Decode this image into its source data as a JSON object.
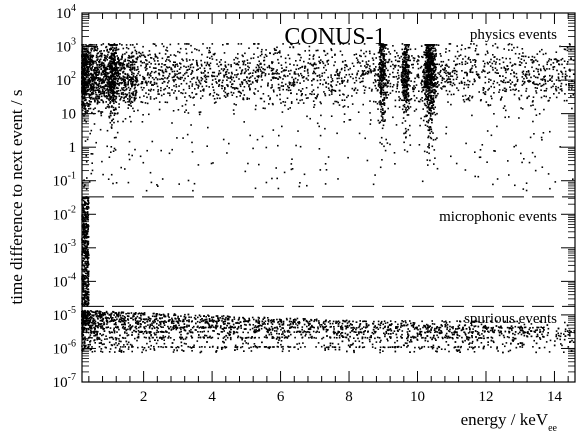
{
  "chart_data": {
    "type": "scatter",
    "title": "CONUS-1",
    "xlabel": "energy / keV",
    "xlabel_subscript": "ee",
    "ylabel": "time difference to next event / s",
    "xlim": [
      0.2,
      14.6
    ],
    "ylim_log10": [
      -7,
      4
    ],
    "y_scale": "log",
    "grid": false,
    "x_ticks": [
      2,
      4,
      6,
      8,
      10,
      12,
      14
    ],
    "x_tick_labels": [
      "2",
      "4",
      "6",
      "8",
      "10",
      "12",
      "14"
    ],
    "y_ticks": [
      {
        "base": "10",
        "exp": "-7"
      },
      {
        "base": "10",
        "exp": "-6"
      },
      {
        "base": "10",
        "exp": "-5"
      },
      {
        "base": "10",
        "exp": "-4"
      },
      {
        "base": "10",
        "exp": "-3"
      },
      {
        "base": "10",
        "exp": "-2"
      },
      {
        "base": "10",
        "exp": "-1"
      },
      {
        "base": "1",
        "exp": ""
      },
      {
        "base": "10",
        "exp": ""
      },
      {
        "base": "10",
        "exp": "2"
      },
      {
        "base": "10",
        "exp": "3"
      },
      {
        "base": "10",
        "exp": "4"
      }
    ],
    "cut_lines": [
      {
        "y": 0.033,
        "style": "dashed"
      },
      {
        "y": 1.8e-05,
        "style": "dashed"
      }
    ],
    "regions": [
      {
        "label": "physics events",
        "color": "#e8202a",
        "y_center": 400
      },
      {
        "label": "microphonic events",
        "color": "#e8202a",
        "y_center": 0.012
      },
      {
        "label": "spurious events",
        "color": "#e8202a",
        "y_center": 1.05e-05
      }
    ],
    "peaks_keV": [
      1.1,
      8.98,
      9.66,
      10.37
    ],
    "clusters": [
      {
        "name": "physics",
        "x_range": [
          0.2,
          14.6
        ],
        "y_range": [
          0.05,
          1200
        ],
        "typical_y": 150
      },
      {
        "name": "microphonic",
        "x_range": [
          0.2,
          0.4
        ],
        "y_range": [
          1.8e-05,
          0.033
        ]
      },
      {
        "name": "spurious",
        "x_range": [
          0.2,
          14.6
        ],
        "y_range": [
          5e-07,
          1.8e-05
        ],
        "typical_y": 6e-06
      }
    ]
  }
}
